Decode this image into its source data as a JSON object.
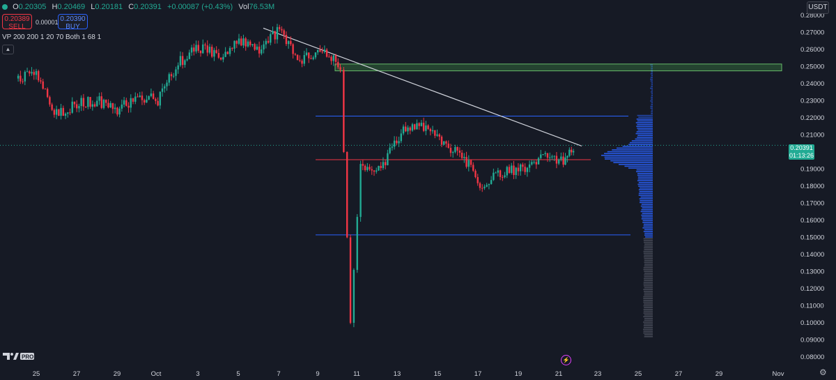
{
  "legend": {
    "o_label": "O",
    "o_value": "0.20305",
    "h_label": "H",
    "h_value": "0.20469",
    "l_label": "L",
    "l_value": "0.20181",
    "c_label": "C",
    "c_value": "0.20391",
    "change": "+0.00087 (+0.43%)",
    "vol_label": "Vol",
    "vol_value": "76.53M"
  },
  "trade": {
    "sell_price": "0.20389",
    "sell_label": "SELL",
    "spread": "0.00001",
    "buy_price": "0.20390",
    "buy_label": "BUY"
  },
  "indicator": {
    "label": "VP 200 200 1 20 70 Both 1 68 1",
    "collapse_icon": "chevron-up-icon"
  },
  "currency": "USDT",
  "price_axis": {
    "ticks": [
      "0.28000",
      "0.27000",
      "0.26000",
      "0.25000",
      "0.24000",
      "0.23000",
      "0.22000",
      "0.21000",
      "0.19000",
      "0.18000",
      "0.17000",
      "0.16000",
      "0.15000",
      "0.14000",
      "0.13000",
      "0.12000",
      "0.11000",
      "0.10000",
      "0.09000",
      "0.08000"
    ],
    "current_price": "0.20391",
    "countdown": "01:13:26"
  },
  "time_axis": {
    "ticks": [
      "25",
      "27",
      "29",
      "Oct",
      "3",
      "5",
      "7",
      "9",
      "11",
      "13",
      "15",
      "17",
      "19",
      "21",
      "23",
      "25",
      "27",
      "29",
      "Nov"
    ]
  },
  "logo": {
    "text": "PRO"
  },
  "icons": {
    "settings": "gear-icon",
    "replay": "lightning-icon"
  },
  "colors": {
    "up": "#22ab94",
    "down": "#f23645",
    "blue_line": "#2962ff",
    "zone": "#4caf50",
    "trendline": "#d1d4dc"
  },
  "chart_data": {
    "type": "candlestick",
    "ylim": [
      0.08,
      0.285
    ],
    "ylabel": "",
    "drawings": {
      "resistance_zone": [
        0.2475,
        0.2515
      ],
      "upper_blue_line": 0.221,
      "poc_line": 0.1955,
      "lower_blue_line": 0.1515,
      "trendline": [
        [
          "Oct 6",
          0.2725
        ],
        [
          "Oct 22",
          0.2035
        ]
      ]
    },
    "close_path": [
      [
        "Sep 24",
        0.243
      ],
      [
        "Sep 25",
        0.248
      ],
      [
        "Sep 26",
        0.222
      ],
      [
        "Sep 27",
        0.228
      ],
      [
        "Sep 28",
        0.23
      ],
      [
        "Sep 29",
        0.225
      ],
      [
        "Sep 30",
        0.233
      ],
      [
        "Oct 1",
        0.23
      ],
      [
        "Oct 2",
        0.252
      ],
      [
        "Oct 3",
        0.262
      ],
      [
        "Oct 4",
        0.255
      ],
      [
        "Oct 5",
        0.265
      ],
      [
        "Oct 6",
        0.26
      ],
      [
        "Oct 7",
        0.271
      ],
      [
        "Oct 8",
        0.252
      ],
      [
        "Oct 9",
        0.262
      ],
      [
        "Oct 10",
        0.25
      ],
      [
        "Oct 10.5",
        0.1
      ],
      [
        "Oct 11",
        0.193
      ],
      [
        "Oct 12",
        0.19
      ],
      [
        "Oct 13",
        0.212
      ],
      [
        "Oct 14",
        0.216
      ],
      [
        "Oct 15",
        0.205
      ],
      [
        "Oct 16",
        0.198
      ],
      [
        "Oct 17",
        0.18
      ],
      [
        "Oct 18",
        0.188
      ],
      [
        "Oct 19",
        0.19
      ],
      [
        "Oct 20",
        0.198
      ],
      [
        "Oct 21",
        0.195
      ],
      [
        "Oct 21.5",
        0.2039
      ]
    ],
    "volume_profile": "horizontal histogram, densest around 0.195–0.205"
  }
}
